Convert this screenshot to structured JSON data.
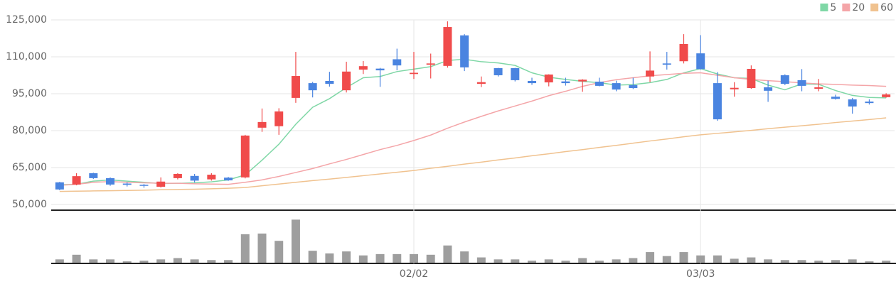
{
  "chart_data": {
    "type": "candlestick",
    "x": [
      null,
      null,
      null,
      null,
      null,
      null,
      null,
      null,
      null,
      null,
      null,
      null,
      null,
      null,
      null,
      null,
      null,
      null,
      null,
      null,
      null,
      "02/02",
      null,
      null,
      null,
      null,
      null,
      null,
      null,
      null,
      null,
      null,
      null,
      null,
      null,
      null,
      null,
      null,
      "03/03",
      null,
      null,
      null,
      null,
      null,
      null,
      null,
      null,
      null,
      null,
      null
    ],
    "open": [
      59000,
      58100,
      62700,
      60700,
      58500,
      58000,
      57200,
      60700,
      61600,
      60200,
      60900,
      61000,
      81200,
      81800,
      93300,
      99300,
      100200,
      96400,
      104800,
      105200,
      109000,
      103000,
      106800,
      106300,
      118700,
      99000,
      105400,
      105400,
      100200,
      99600,
      100000,
      100000,
      99900,
      99300,
      98500,
      102000,
      107300,
      108200,
      111400,
      99300,
      96800,
      97300,
      97600,
      102500,
      100500,
      97000,
      93800,
      92700,
      91800,
      93600
    ],
    "high": [
      59200,
      62700,
      62900,
      61000,
      59000,
      58300,
      61000,
      62700,
      62400,
      62700,
      61200,
      78300,
      89000,
      89100,
      112000,
      99800,
      103900,
      108000,
      108300,
      105500,
      113300,
      112000,
      111300,
      124400,
      119200,
      102000,
      105500,
      105500,
      101500,
      102900,
      101500,
      100900,
      101500,
      100300,
      101500,
      112200,
      112000,
      119200,
      118800,
      103800,
      99700,
      106500,
      100300,
      102900,
      105000,
      101000,
      94600,
      93300,
      92700,
      95200
    ],
    "low": [
      55800,
      57800,
      60400,
      57600,
      57300,
      56800,
      56900,
      60200,
      59000,
      59700,
      59600,
      60600,
      79500,
      78300,
      91300,
      93500,
      97900,
      95500,
      103000,
      97800,
      104500,
      101000,
      101200,
      105600,
      104200,
      97700,
      102000,
      100000,
      98600,
      98000,
      98300,
      95800,
      98000,
      96000,
      96900,
      99700,
      104800,
      107300,
      104800,
      84000,
      93800,
      97000,
      91700,
      98500,
      96000,
      96000,
      92600,
      86900,
      90600,
      93400
    ],
    "close": [
      56100,
      61500,
      60700,
      58100,
      58000,
      57800,
      59300,
      62400,
      59700,
      62100,
      59800,
      78000,
      83500,
      87800,
      102200,
      96400,
      99000,
      104000,
      106200,
      104500,
      106500,
      103500,
      107300,
      122100,
      105700,
      99700,
      102500,
      100500,
      99300,
      102800,
      99300,
      100700,
      98200,
      96700,
      97300,
      104400,
      106800,
      115200,
      105000,
      84600,
      97400,
      105100,
      96200,
      99000,
      98200,
      97600,
      92900,
      89800,
      91200,
      94700
    ],
    "up_color": "#f04b4b",
    "down_color": "#4a84e0",
    "ylim": [
      50000,
      125000
    ],
    "yticks": [
      {
        "value": 50000,
        "label": "50,000"
      },
      {
        "value": 65000,
        "label": "65,000"
      },
      {
        "value": 80000,
        "label": "80,000"
      },
      {
        "value": 95000,
        "label": "95,000"
      },
      {
        "value": 110000,
        "label": "110,000"
      },
      {
        "value": 125000,
        "label": "125,000"
      }
    ],
    "grid": true,
    "legend": "top-right",
    "series": [
      {
        "name": "5",
        "color": "#7fd7a6",
        "values": [
          58000,
          58200,
          59500,
          60000,
          59500,
          59000,
          58500,
          58600,
          58800,
          59200,
          60000,
          62000,
          68000,
          74500,
          82600,
          89500,
          93000,
          97500,
          101500,
          102000,
          104000,
          105000,
          106000,
          108500,
          109000,
          108000,
          107500,
          106500,
          103500,
          101700,
          100800,
          100000,
          99500,
          98500,
          98700,
          99500,
          100800,
          103500,
          105200,
          103000,
          101500,
          101200,
          98500,
          96600,
          99000,
          98800,
          96300,
          94300,
          93500,
          93300
        ]
      },
      {
        "name": "20",
        "color": "#f4a5a8",
        "values": [
          57800,
          58200,
          59000,
          59300,
          59000,
          58800,
          58600,
          58600,
          58400,
          58300,
          58200,
          59000,
          60000,
          61400,
          63000,
          64600,
          66500,
          68300,
          70300,
          72300,
          74000,
          76000,
          78200,
          81000,
          83500,
          85800,
          88000,
          90000,
          92000,
          94200,
          96000,
          98000,
          99500,
          100700,
          101500,
          102300,
          102800,
          103300,
          103500,
          102500,
          101500,
          100800,
          100300,
          99900,
          99400,
          99000,
          98800,
          98500,
          98300,
          98000
        ]
      },
      {
        "name": "60",
        "color": "#f0c28f",
        "values": [
          55300,
          55400,
          55500,
          55600,
          55700,
          55800,
          56000,
          56100,
          56200,
          56400,
          56600,
          56900,
          57600,
          58300,
          59000,
          59700,
          60300,
          61000,
          61700,
          62400,
          63100,
          63800,
          64700,
          65500,
          66400,
          67200,
          68100,
          68900,
          69800,
          70600,
          71500,
          72300,
          73200,
          74000,
          74900,
          75800,
          76600,
          77500,
          78300,
          78900,
          79500,
          80100,
          80800,
          81400,
          82000,
          82600,
          83300,
          83900,
          84500,
          85200
        ]
      }
    ],
    "volume": {
      "color": "#9e9e9e",
      "ylim": [
        0,
        75
      ],
      "values": [
        5,
        12,
        5,
        5,
        2,
        3,
        5,
        7,
        5,
        4,
        4,
        43,
        44,
        33,
        65,
        18,
        14,
        17,
        11,
        13,
        13,
        13,
        12,
        26,
        17,
        8,
        5,
        5,
        3,
        5,
        3,
        7,
        3,
        5,
        7,
        16,
        10,
        16,
        11,
        11,
        6,
        8,
        5,
        4,
        4,
        3,
        4,
        5,
        2,
        3
      ]
    }
  }
}
